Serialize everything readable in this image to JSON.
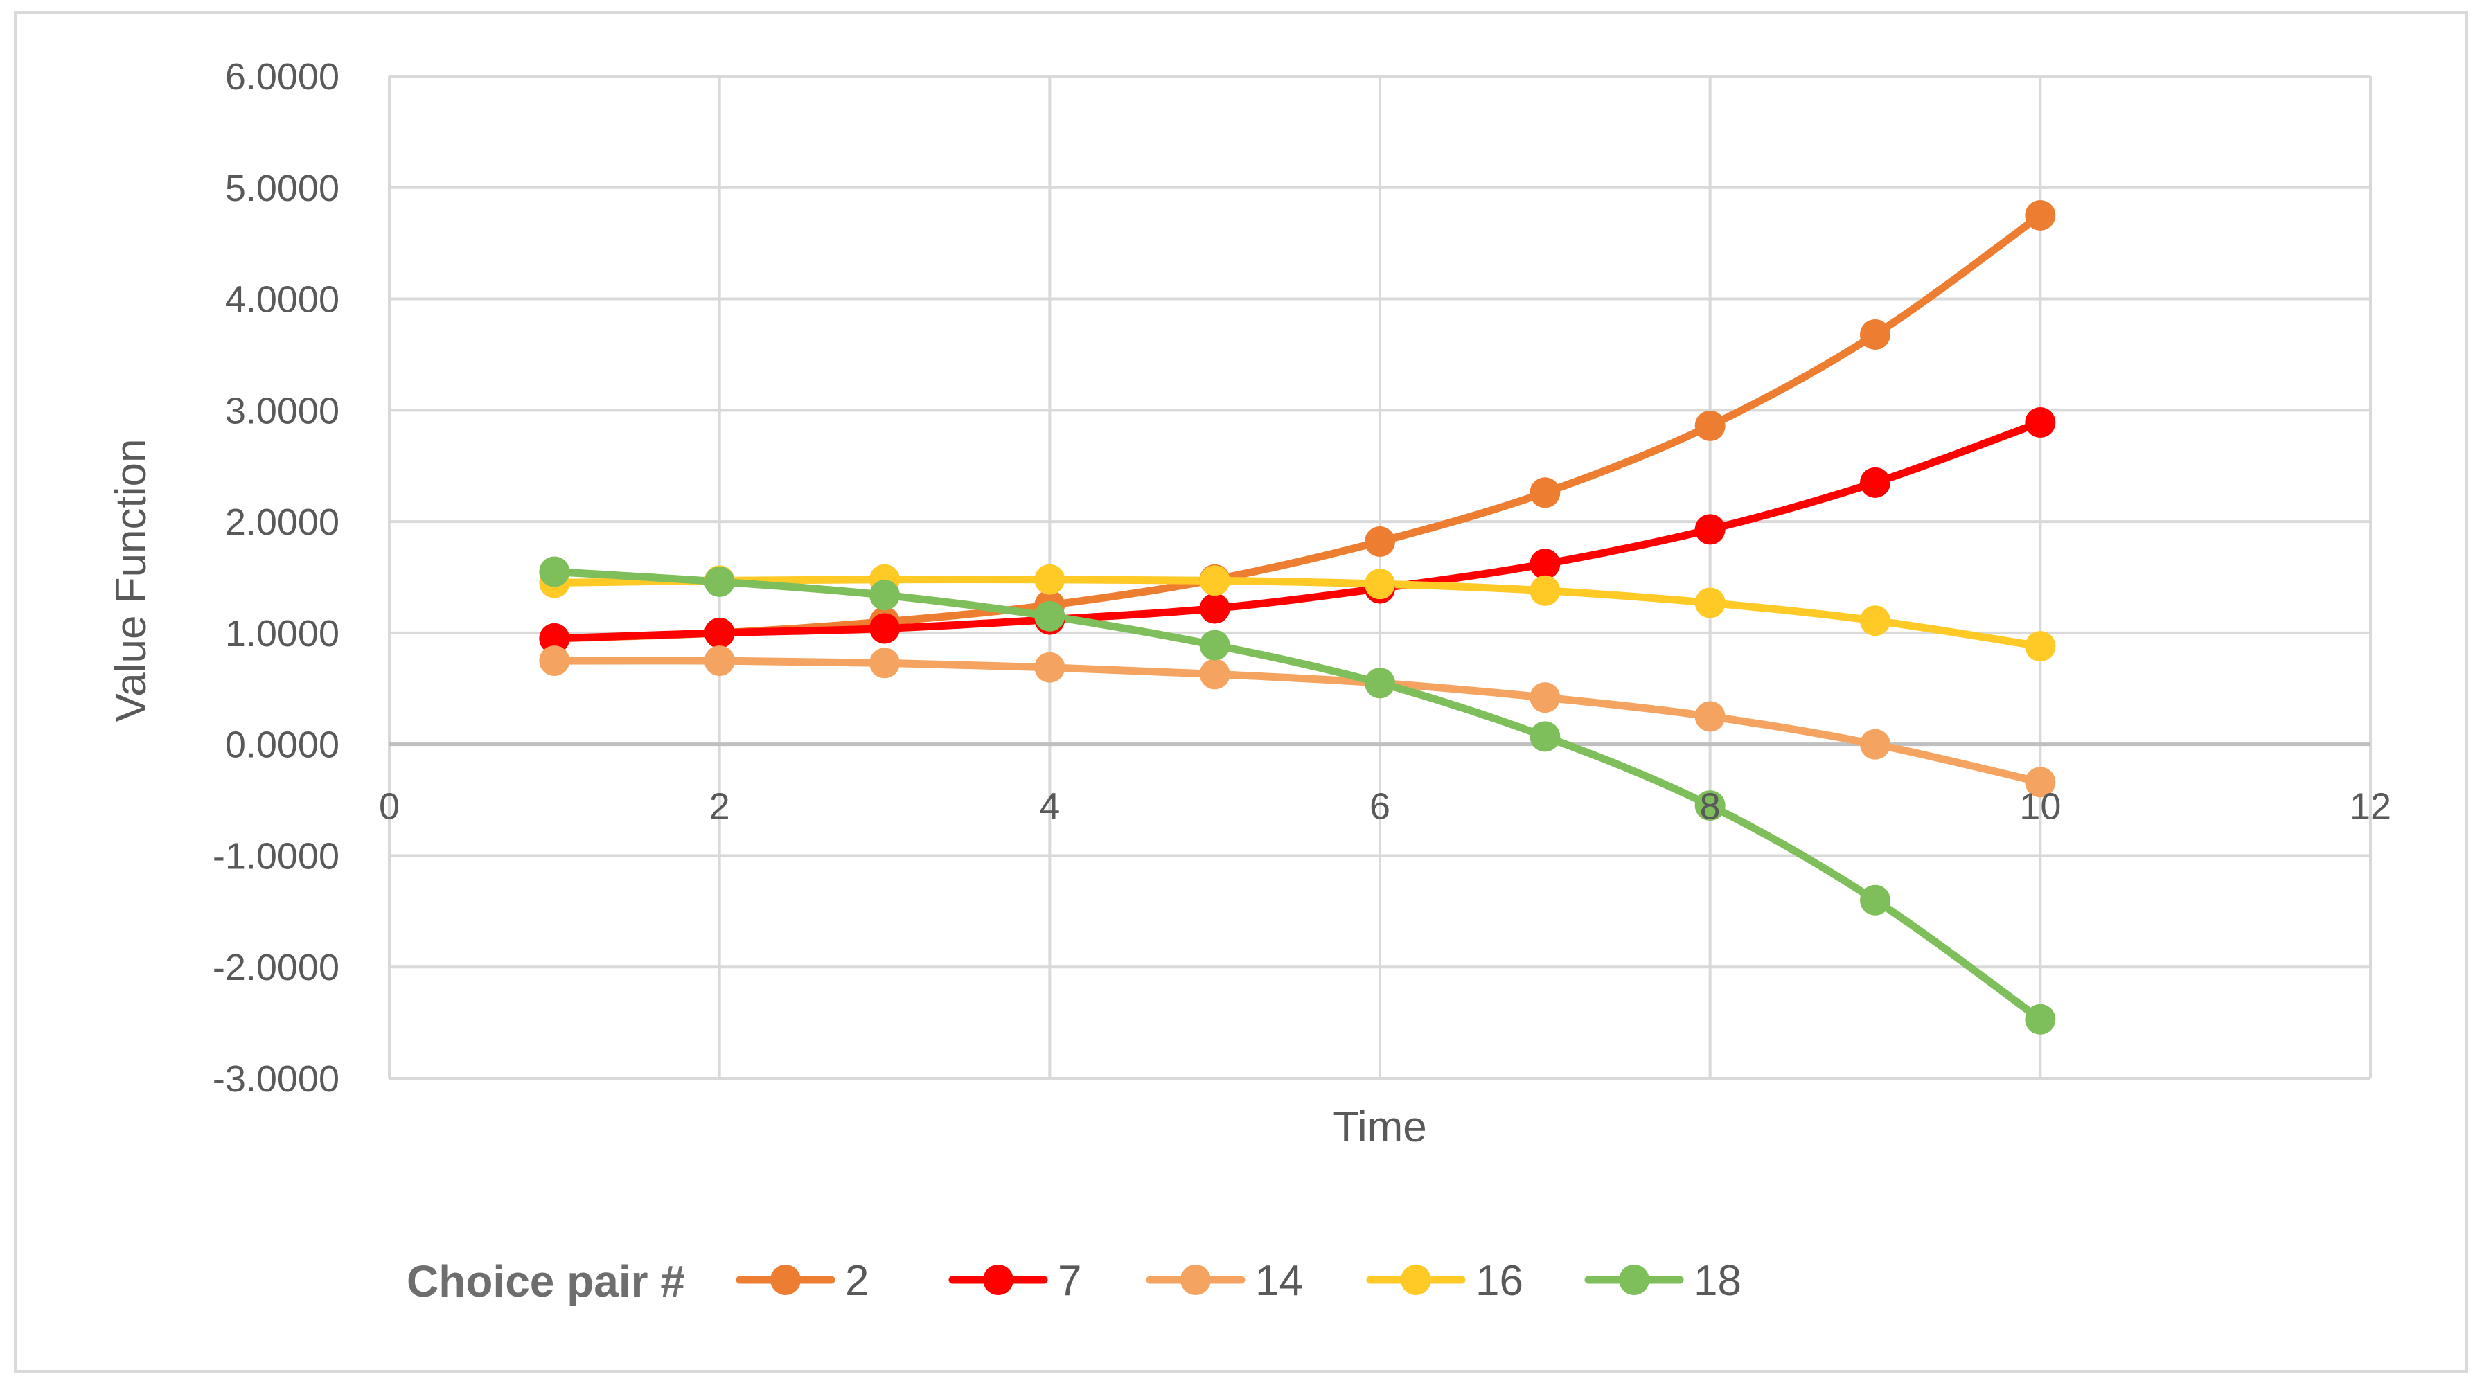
{
  "chart_data": {
    "type": "line",
    "smooth": true,
    "markers": "circle",
    "xlabel": "Time",
    "ylabel": "Value Function",
    "xlim": [
      0,
      12
    ],
    "ylim": [
      -3,
      6
    ],
    "x_ticks": [
      0,
      2,
      4,
      6,
      8,
      10,
      12
    ],
    "y_ticks": [
      -3,
      -2,
      -1,
      0,
      1,
      2,
      3,
      4,
      5,
      6
    ],
    "y_tick_labels": [
      "-3.0000",
      "-2.0000",
      "-1.0000",
      "0.0000",
      "1.0000",
      "2.0000",
      "3.0000",
      "4.0000",
      "5.0000",
      "6.0000"
    ],
    "grid": "both",
    "legend_title": "Choice pair #",
    "legend_position": "bottom",
    "x": [
      1,
      2,
      3,
      4,
      5,
      6,
      7,
      8,
      9,
      10
    ],
    "series": [
      {
        "name": "2",
        "color": "#ED7D31",
        "values": [
          0.95,
          1.0,
          1.1,
          1.25,
          1.48,
          1.82,
          2.26,
          2.86,
          3.68,
          4.75
        ]
      },
      {
        "name": "7",
        "color": "#FF0000",
        "values": [
          0.95,
          1.0,
          1.04,
          1.12,
          1.22,
          1.4,
          1.62,
          1.93,
          2.35,
          2.89
        ]
      },
      {
        "name": "14",
        "color": "#F4A460",
        "values": [
          0.75,
          0.75,
          0.73,
          0.69,
          0.63,
          0.55,
          0.42,
          0.25,
          0.0,
          -0.34
        ]
      },
      {
        "name": "16",
        "color": "#FFC926",
        "values": [
          1.45,
          1.47,
          1.48,
          1.48,
          1.47,
          1.44,
          1.38,
          1.27,
          1.11,
          0.88
        ]
      },
      {
        "name": "18",
        "color": "#7FBF5B",
        "values": [
          1.55,
          1.46,
          1.34,
          1.15,
          0.89,
          0.55,
          0.07,
          -0.55,
          -1.4,
          -2.47
        ]
      }
    ]
  }
}
